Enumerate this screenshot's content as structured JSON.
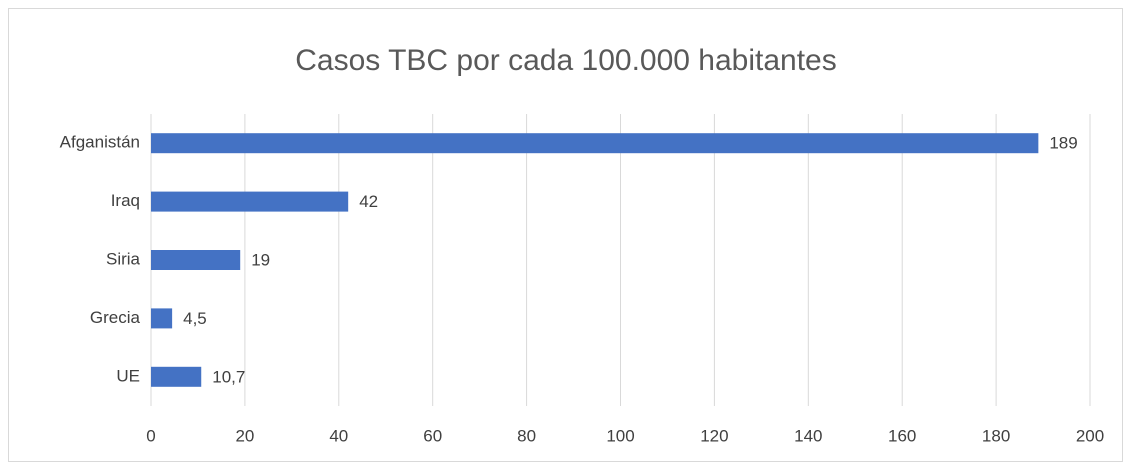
{
  "chart_data": {
    "type": "bar",
    "orientation": "horizontal",
    "title": "Casos TBC por cada 100.000 habitantes",
    "categories": [
      "Afganistán",
      "Iraq",
      "Siria",
      "Grecia",
      "UE"
    ],
    "values": [
      189,
      42,
      19,
      4.5,
      10.7
    ],
    "value_labels": [
      "189",
      "42",
      "19",
      "4,5",
      "10,7"
    ],
    "color": "#4472c4",
    "xlim": [
      0,
      200
    ],
    "xticks": [
      0,
      20,
      40,
      60,
      80,
      100,
      120,
      140,
      160,
      180,
      200
    ],
    "grid": true
  }
}
